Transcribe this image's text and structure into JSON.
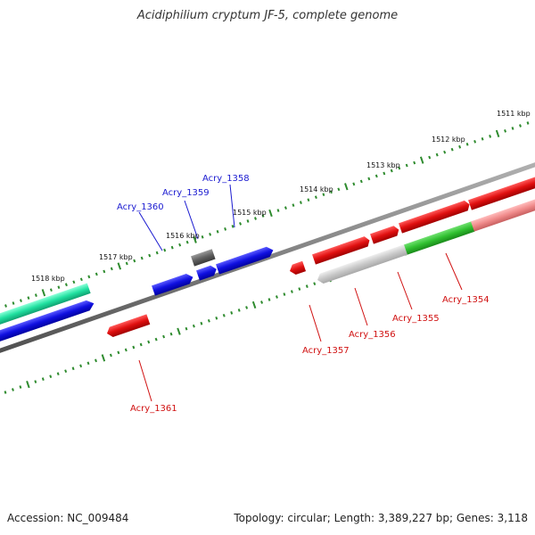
{
  "title": "Acidiphilium cryptum JF-5, complete genome",
  "footer": {
    "accession": "Accession: NC_009484",
    "summary": "Topology: circular; Length: 3,389,227 bp; Genes: 3,118"
  },
  "colors": {
    "backbone": "#808080",
    "ticks": "#2e8b2e",
    "gene_red": "#e01010",
    "gene_blue": "#1010e0",
    "gene_grey": "#606060",
    "gene_teal": "#20e0a0",
    "gene_green": "#30c030",
    "gene_lightgrey": "#c8c8c8",
    "gene_pink": "#f08a8a",
    "label_blue": "#1a1ad0",
    "label_red": "#d01010"
  },
  "kbp_labels": [
    "1511 kbp",
    "1512 kbp",
    "1513 kbp",
    "1514 kbp",
    "1515 kbp",
    "1516 kbp",
    "1517 kbp",
    "1518 kbp"
  ],
  "gene_labels": {
    "top": [
      "Acry_1358",
      "Acry_1359",
      "Acry_1360"
    ],
    "bottom": [
      "Acry_1354",
      "Acry_1355",
      "Acry_1356",
      "Acry_1357",
      "Acry_1361"
    ]
  }
}
